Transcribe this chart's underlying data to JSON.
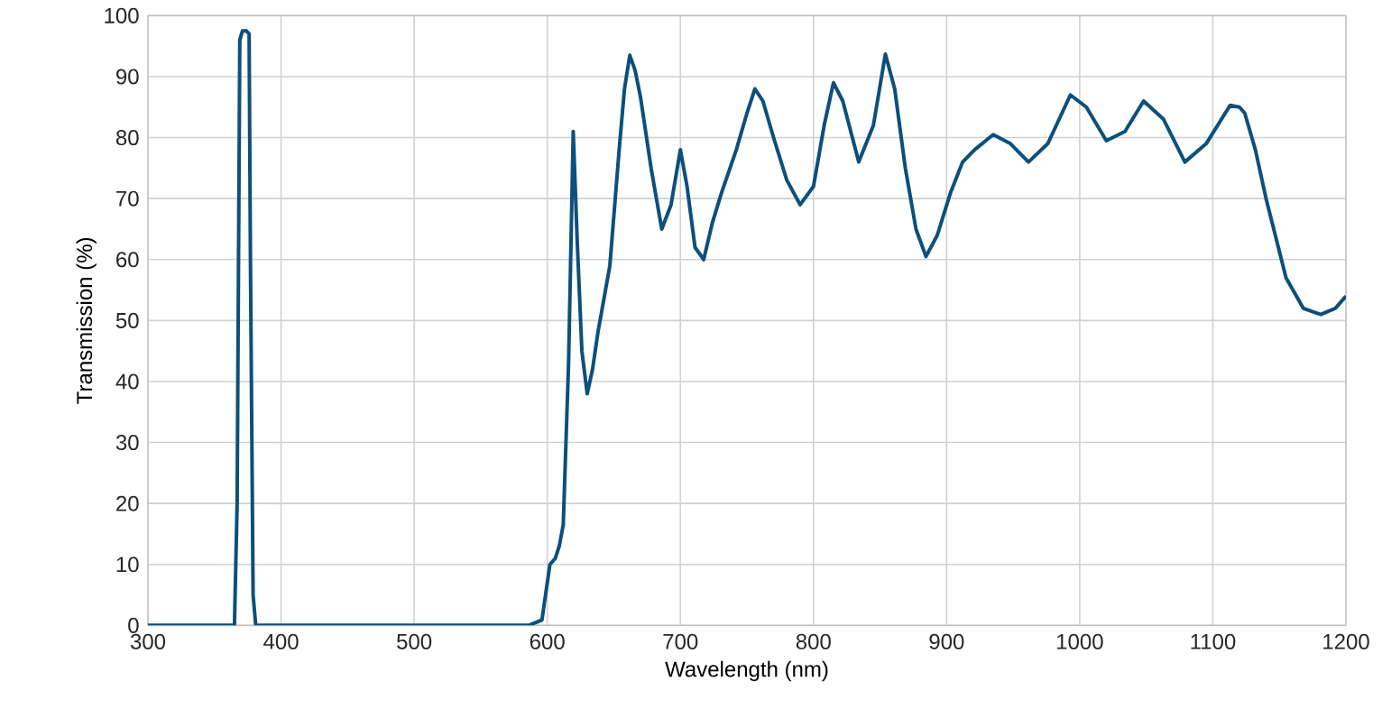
{
  "chart_data": {
    "type": "line",
    "xlabel": "Wavelength (nm)",
    "ylabel": "Transmission (%)",
    "x": [
      300,
      360,
      365,
      367,
      369,
      371,
      374,
      376,
      377,
      379,
      381,
      385,
      500,
      586,
      596,
      602,
      606,
      609,
      612,
      616,
      619.5,
      622.5,
      626,
      630,
      634,
      638,
      647,
      654,
      658,
      662,
      666,
      670,
      678,
      686,
      693,
      700,
      705,
      711,
      717.5,
      724,
      731,
      742,
      750,
      756,
      762,
      770,
      780,
      790,
      800,
      808,
      815,
      822,
      834,
      845,
      854,
      861,
      869,
      877,
      884.5,
      893,
      903,
      912,
      921,
      935,
      948,
      961.5,
      976,
      993,
      1005,
      1020,
      1034,
      1048,
      1063,
      1079,
      1095,
      1113,
      1120,
      1124,
      1132,
      1140,
      1155,
      1168,
      1181,
      1192,
      1200
    ],
    "values": [
      0,
      0,
      0,
      20,
      96,
      97.5,
      97.5,
      97,
      60,
      5,
      0,
      0,
      0,
      0,
      0.9,
      10,
      11,
      13,
      16.5,
      43,
      81,
      63,
      45,
      38,
      42,
      48,
      59,
      78,
      88,
      93.5,
      91,
      86.7,
      75,
      65,
      69,
      78,
      72,
      62,
      60,
      66,
      71,
      78,
      84,
      88,
      86,
      80,
      73,
      69,
      72,
      82,
      89,
      86,
      76,
      82,
      93.7,
      88,
      75,
      65,
      60.5,
      64,
      71,
      76,
      78,
      80.5,
      79,
      76,
      79,
      87,
      85,
      79.5,
      81,
      86,
      83,
      76,
      79,
      85.3,
      85,
      84,
      78,
      70,
      57,
      52,
      51,
      52,
      54
    ],
    "color": "#0d4f7c",
    "xlim": [
      300,
      1200
    ],
    "ylim": [
      0,
      100
    ],
    "xticks": [
      300,
      400,
      500,
      600,
      700,
      800,
      900,
      1000,
      1100,
      1200
    ],
    "yticks": [
      0,
      10,
      20,
      30,
      40,
      50,
      60,
      70,
      80,
      90,
      100
    ],
    "grid": true,
    "marker": "none",
    "line_style": "solid"
  }
}
